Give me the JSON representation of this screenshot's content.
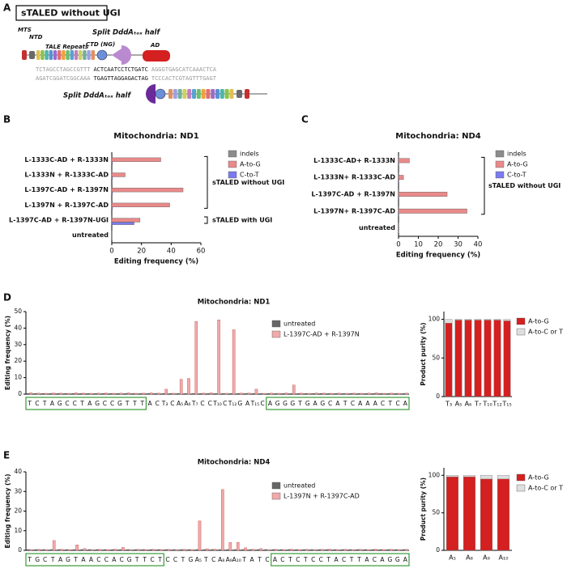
{
  "panel_labels": [
    "A",
    "B",
    "C",
    "D",
    "E"
  ],
  "panel_a": {
    "title": "sTALED without UGI",
    "labels": [
      "MTS",
      "NTD",
      "TALE Repeats",
      "CTD (NG)",
      "Split DddAₜₒₓ half",
      "AD",
      "Split DddAₜₒₓ half"
    ],
    "sequence_top": [
      "TCTAGCCTAGCCGTTT",
      "ACTCAATCCTCTGATC",
      "AGGGTGAGCATCAAACTCA"
    ],
    "sequence_bottom": [
      "AGATCGGATCGGCAAA",
      "TGAGTTAGGAGACTAG",
      "TCCCACTCGTAGTTTGAGT"
    ]
  },
  "chart_data": [
    {
      "type": "bar",
      "orientation": "horizontal",
      "title": "Mitochondria: ND1",
      "xlabel": "Editing frequency (%)",
      "categories": [
        "L-1333C-AD + R-1333N",
        "L-1333N + R-1333C-AD",
        "L-1397C-AD + R-1397N",
        "L-1397N + R-1397C-AD",
        "L-1397C-AD + R-1397N-UGI",
        "untreated"
      ],
      "series": [
        {
          "name": "indels",
          "color": "#8c8c8c",
          "values": [
            0.4,
            0.3,
            0.4,
            0.4,
            0.3,
            0.2
          ]
        },
        {
          "name": "A-to-G",
          "color": "#e98a8a",
          "values": [
            33,
            9,
            48,
            39,
            19,
            0.2
          ]
        },
        {
          "name": "C-to-T",
          "color": "#7b7bf0",
          "values": [
            0.5,
            0.5,
            0.5,
            0.5,
            15,
            0.2
          ]
        }
      ],
      "xlim": [
        0,
        60
      ],
      "xticks": [
        0,
        20,
        40,
        60
      ],
      "annotations": [
        "sTALED without UGI",
        "sTALED with UGI"
      ]
    },
    {
      "type": "bar",
      "orientation": "horizontal",
      "title": "Mitochondria: ND4",
      "xlabel": "Editing frequency (%)",
      "categories": [
        "L-1333C-AD+ R-1333N",
        "L-1333N+ R-1333C-AD",
        "L-1397C-AD + R-1397N",
        "L-1397N+ R-1397C-AD",
        "untreated"
      ],
      "series": [
        {
          "name": "indels",
          "color": "#8c8c8c",
          "values": [
            0.2,
            0.2,
            0.2,
            0.2,
            0.1
          ]
        },
        {
          "name": "A-to-G",
          "color": "#e98a8a",
          "values": [
            5.5,
            2.5,
            24.5,
            34.5,
            0.2
          ]
        },
        {
          "name": "C-to-T",
          "color": "#7b7bf0",
          "values": [
            0.2,
            0.2,
            0.2,
            0.2,
            0.1
          ]
        }
      ],
      "xlim": [
        0,
        40
      ],
      "xticks": [
        0,
        10,
        20,
        30,
        40
      ],
      "annotations": [
        "sTALED without UGI"
      ]
    },
    {
      "type": "bar",
      "title": "Mitochondria: ND1",
      "ylabel": "Editing frequency (%)",
      "categories": [
        "T",
        "C",
        "T",
        "A",
        "G",
        "C",
        "C",
        "T",
        "A",
        "G",
        "C",
        "C",
        "G",
        "T",
        "T",
        "T",
        "A",
        "C",
        "T₃",
        "C",
        "A₅",
        "A₆",
        "T₇",
        "C",
        "C",
        "T₁₀",
        "C",
        "T₁₂",
        "G",
        "A",
        "T₁₅",
        "C",
        "A",
        "G",
        "G",
        "G",
        "T",
        "G",
        "A",
        "G",
        "C",
        "A",
        "T",
        "C",
        "A",
        "A",
        "A",
        "C",
        "T",
        "C",
        "A"
      ],
      "series": [
        {
          "name": "untreated",
          "color": "#666666",
          "values": [
            0.4,
            0.4,
            0.4,
            0.4,
            0.4,
            0.4,
            0.4,
            0.4,
            0.4,
            0.4,
            0.4,
            0.4,
            0.4,
            0.4,
            0.4,
            0.4,
            0.4,
            0.4,
            0.4,
            0.4,
            0.4,
            0.4,
            0.4,
            0.4,
            0.4,
            0.4,
            0.4,
            0.4,
            0.4,
            0.4,
            0.4,
            0.4,
            0.4,
            0.4,
            0.4,
            0.4,
            0.4,
            0.4,
            0.4,
            0.4,
            0.4,
            0.4,
            0.4,
            0.4,
            0.4,
            0.4,
            0.4,
            0.4,
            0.4,
            0.4,
            0.4
          ]
        },
        {
          "name": "L-1397C-AD + R-1397N",
          "color": "#f2a9a9",
          "values": [
            0.8,
            0.6,
            0.5,
            0.7,
            0.6,
            0.5,
            0.8,
            0.6,
            0.5,
            0.6,
            0.7,
            0.5,
            0.6,
            0.8,
            0.5,
            0.6,
            0.8,
            0.6,
            3,
            0.5,
            9,
            9.5,
            44,
            0.6,
            0.8,
            45,
            0.5,
            39,
            0.6,
            0.7,
            3,
            0.5,
            0.6,
            0.5,
            0.7,
            5.5,
            0.6,
            0.5,
            0.7,
            0.6,
            0.5,
            0.6,
            0.5,
            0.6,
            0.5,
            0.6,
            0.8,
            0.5,
            0.6,
            0.5,
            0.6
          ]
        }
      ],
      "ylim": [
        0,
        50
      ],
      "yticks": [
        0,
        10,
        20,
        30,
        40,
        50
      ]
    },
    {
      "type": "stacked-bar",
      "ylabel": "Product purity (%)",
      "categories": [
        "T₃",
        "A₅",
        "A₆",
        "T₇",
        "T₁₀",
        "T₁₂",
        "T₁₅"
      ],
      "series": [
        {
          "name": "A-to-G",
          "color": "#d42020",
          "values": [
            95,
            99,
            99,
            99,
            99,
            99,
            98
          ]
        },
        {
          "name": "A-to-C or T",
          "color": "#dedede",
          "values": [
            5,
            1,
            1,
            1,
            1,
            1,
            2
          ]
        }
      ],
      "ylim": [
        0,
        110
      ],
      "yticks": [
        0,
        50,
        100
      ]
    },
    {
      "type": "bar",
      "title": "Mitochondria: ND4",
      "ylabel": "Editing frequency (%)",
      "categories": [
        "T",
        "G",
        "C",
        "T",
        "A",
        "G",
        "T",
        "A",
        "A",
        "C",
        "C",
        "A",
        "C",
        "G",
        "T",
        "T",
        "C",
        "T",
        "C",
        "C",
        "T",
        "G",
        "A₅",
        "T",
        "C",
        "A₈",
        "A₉",
        "A₁₀",
        "T",
        "A",
        "T",
        "C",
        "A",
        "C",
        "T",
        "C",
        "T",
        "C",
        "C",
        "T",
        "A",
        "C",
        "T",
        "T",
        "A",
        "C",
        "A",
        "G",
        "G",
        "A"
      ],
      "series": [
        {
          "name": "untreated",
          "color": "#666666",
          "values": [
            0.4,
            0.4,
            0.4,
            0.4,
            0.4,
            0.4,
            0.4,
            0.4,
            0.4,
            0.4,
            0.4,
            0.4,
            0.4,
            0.4,
            0.4,
            0.4,
            0.4,
            0.4,
            0.4,
            0.4,
            0.4,
            0.4,
            0.4,
            0.4,
            0.4,
            0.4,
            0.4,
            0.4,
            0.4,
            0.4,
            0.4,
            0.4,
            0.4,
            0.4,
            0.4,
            0.4,
            0.4,
            0.4,
            0.4,
            0.4,
            0.4,
            0.4,
            0.4,
            0.4,
            0.4,
            0.4,
            0.4,
            0.4,
            0.4,
            0.4
          ]
        },
        {
          "name": "L-1397N + R-1397C-AD",
          "color": "#f2a9a9",
          "values": [
            0.4,
            0.5,
            0.4,
            5,
            0.5,
            0.4,
            2.8,
            0.9,
            0.4,
            0.5,
            0.4,
            0.6,
            1.5,
            0.4,
            0.5,
            0.4,
            0.5,
            0.4,
            0.5,
            0.4,
            0.5,
            0.4,
            15,
            0.8,
            0.6,
            31,
            4,
            4,
            1.3,
            0.5,
            0.9,
            0.4,
            0.5,
            0.4,
            0.6,
            0.4,
            0.5,
            0.4,
            0.5,
            0.6,
            0.4,
            0.5,
            0.4,
            0.5,
            0.4,
            0.6,
            0.4,
            0.5,
            0.4,
            0.5
          ]
        }
      ],
      "ylim": [
        0,
        40
      ],
      "yticks": [
        0,
        10,
        20,
        30,
        40
      ]
    },
    {
      "type": "stacked-bar",
      "ylabel": "Product purity (%)",
      "categories": [
        "A₅",
        "A₈",
        "A₉",
        "A₁₀"
      ],
      "series": [
        {
          "name": "A-to-G",
          "color": "#d42020",
          "values": [
            98,
            98,
            95,
            95
          ]
        },
        {
          "name": "A-to-C or T",
          "color": "#dedede",
          "values": [
            2,
            2,
            5,
            5
          ]
        }
      ],
      "ylim": [
        0,
        110
      ],
      "yticks": [
        0,
        50,
        100
      ]
    }
  ]
}
